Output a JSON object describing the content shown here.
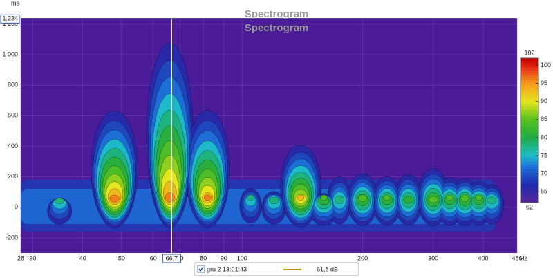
{
  "chart_data": {
    "type": "spectrogram",
    "title": "Spectrogram",
    "subtitle": "Spectrogram",
    "y_label": "ms",
    "x_label": "Hz",
    "log_x": true,
    "grid": true,
    "background": "#4b1c99",
    "xlim": [
      28,
      486
    ],
    "xticks": [
      28,
      30,
      40,
      50,
      60,
      70,
      80,
      90,
      100,
      200,
      300,
      400,
      486
    ],
    "ylim": [
      -300,
      1240
    ],
    "yticks": [
      -200,
      0,
      200,
      400,
      600,
      800,
      {
        "value": 1000,
        "label": "1 000"
      },
      {
        "value": 1200,
        "label": "1 200"
      }
    ],
    "cursor": {
      "x": {
        "value": 66.7,
        "label": "66,7"
      },
      "y": {
        "value": 1234,
        "label": "1,234"
      }
    },
    "color_scale": {
      "lim": [
        62,
        102
      ],
      "ticks": [
        65,
        70,
        75,
        80,
        85,
        90,
        95,
        100
      ]
    },
    "peaks": [
      {
        "freq": 35,
        "time": 60,
        "level": 80
      },
      {
        "freq": 48,
        "time": 720,
        "level": 98
      },
      {
        "freq": 66,
        "time": 1230,
        "level": 98
      },
      {
        "freq": 82,
        "time": 730,
        "level": 96
      },
      {
        "freq": 105,
        "time": 150,
        "level": 78
      },
      {
        "freq": 120,
        "time": 120,
        "level": 80
      },
      {
        "freq": 140,
        "time": 470,
        "level": 93
      },
      {
        "freq": 160,
        "time": 100,
        "level": 84
      },
      {
        "freq": 175,
        "time": 250,
        "level": 80
      },
      {
        "freq": 200,
        "time": 260,
        "level": 85
      },
      {
        "freq": 230,
        "time": 240,
        "level": 84
      },
      {
        "freq": 260,
        "time": 260,
        "level": 83
      },
      {
        "freq": 300,
        "time": 300,
        "level": 86
      },
      {
        "freq": 330,
        "time": 230,
        "level": 84
      },
      {
        "freq": 360,
        "time": 220,
        "level": 85
      },
      {
        "freq": 390,
        "time": 200,
        "level": 84
      },
      {
        "freq": 420,
        "time": 180,
        "level": 80
      }
    ],
    "series": [
      {
        "name": "gru 2 13:01:43",
        "color": "#b8960c"
      }
    ],
    "readout": "61,8 dB"
  }
}
